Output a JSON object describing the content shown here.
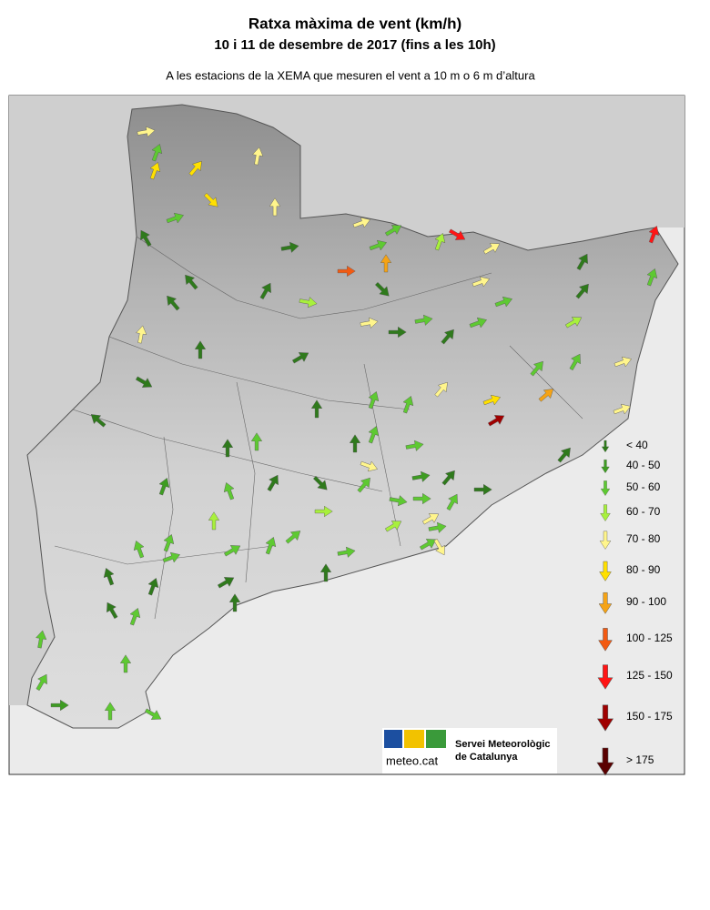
{
  "map": {
    "title": "Ratxa màxima de vent (km/h)",
    "subtitle": "10 i 11 de desembre de 2017 (fins a les 10h)",
    "caption": "A les estacions de la XEMA que mesuren el vent a 10 m o 6 m d’altura",
    "legend": [
      {
        "label": "< 40",
        "color": "#2f7a1c"
      },
      {
        "label": "40 - 50",
        "color": "#3e9c22"
      },
      {
        "label": "50 - 60",
        "color": "#5ec932"
      },
      {
        "label": "60 - 70",
        "color": "#a8f03c"
      },
      {
        "label": "70 - 80",
        "color": "#fff58c"
      },
      {
        "label": "80 - 90",
        "color": "#ffe000"
      },
      {
        "label": "90 - 100",
        "color": "#f5a315"
      },
      {
        "label": "100 - 125",
        "color": "#f25a12"
      },
      {
        "label": "125 - 150",
        "color": "#ff1414"
      },
      {
        "label": "150 - 175",
        "color": "#a00000"
      },
      {
        "label": "> 175",
        "color": "#5a0000"
      }
    ],
    "logo": {
      "name": "meteo.cat",
      "org_line1": "Servei Meteorològic",
      "org_line2": "de Catalunya"
    }
  }
}
